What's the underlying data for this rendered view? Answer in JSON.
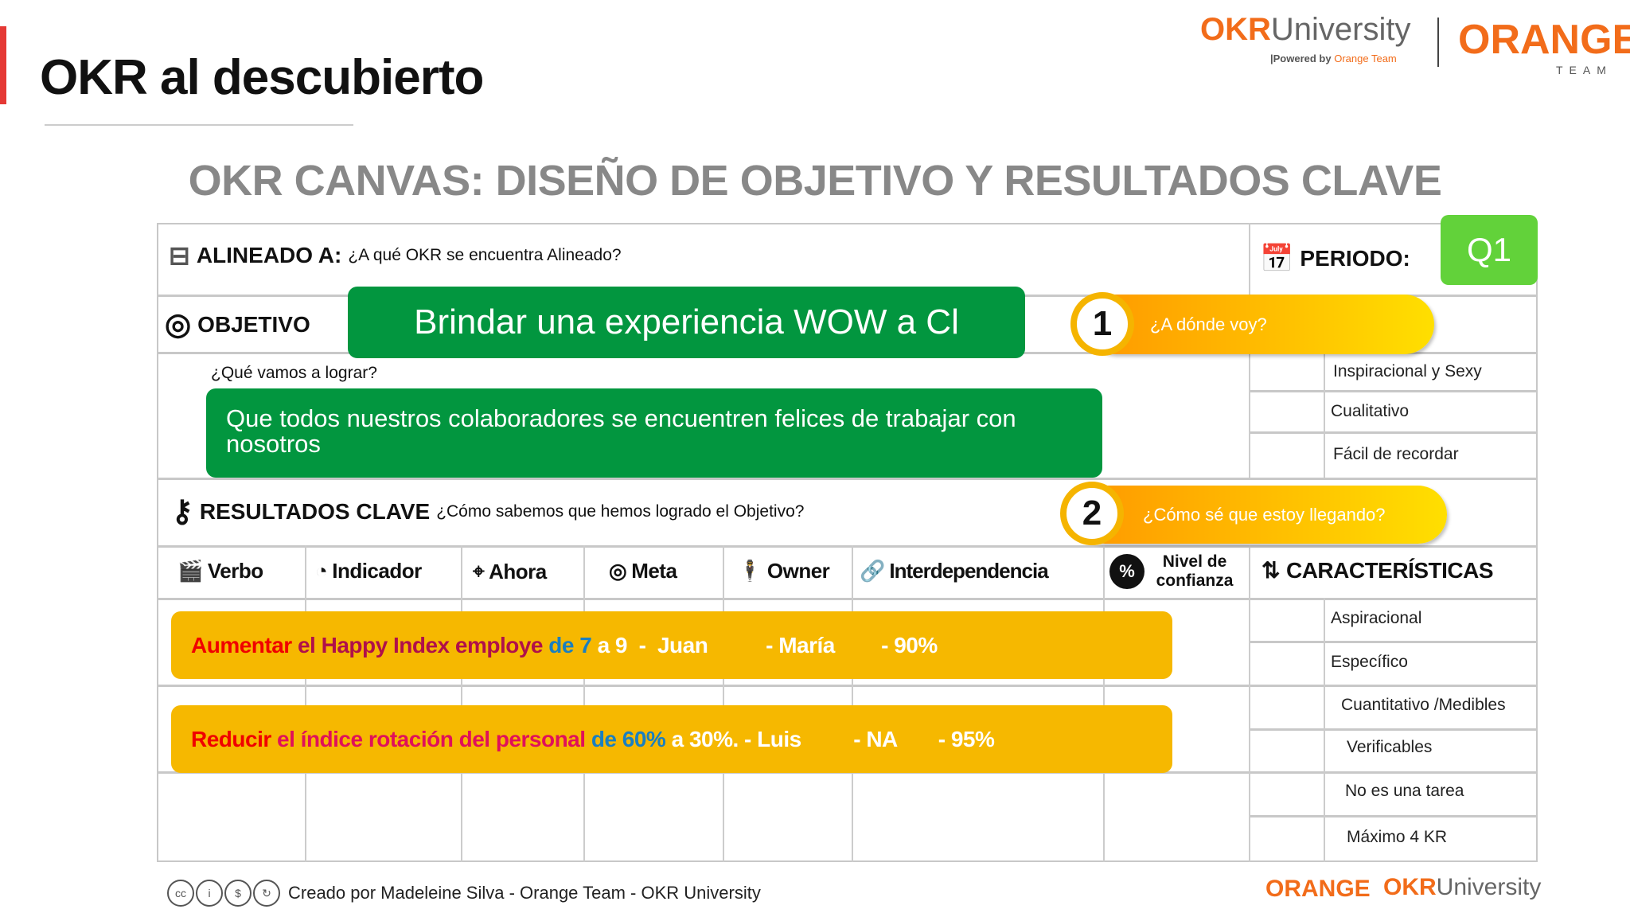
{
  "header": {
    "title": "OKR al descubierto",
    "logo_okr": "OKR",
    "logo_university": "University",
    "logo_powered": "|Powered by",
    "logo_powered_brand": "Orange Team",
    "logo_orange": "ORANGE",
    "logo_team": "TEAM"
  },
  "canvas": {
    "title": "OKR CANVAS: DISEÑO DE OBJETIVO Y RESULTADOS CLAVE",
    "aligned_label": "ALINEADO A:",
    "aligned_question": "¿A qué OKR se encuentra Alineado?",
    "period_label": "PERIODO:",
    "period_value": "Q1",
    "objective_label": "OBJETIVO",
    "objective_value": "Brindar una experiencia WOW a Cl",
    "objective_question": "¿Qué vamos a lograr?",
    "objective_description": "Que todos nuestros colaboradores se encuentren felices de trabajar con nosotros",
    "step1_number": "1",
    "step1_text": "¿A dónde voy?",
    "step2_number": "2",
    "step2_text": "¿Cómo sé que estoy llegando?",
    "kr_label": "RESULTADOS CLAVE",
    "kr_question": "¿Cómo sabemos que hemos logrado el Objetivo?",
    "columns": [
      "Verbo",
      "Indicador",
      "Ahora",
      "Meta",
      "Owner",
      "Interdependencia",
      "Nivel de confianza",
      "CARACTERÍSTICAS"
    ],
    "objective_traits": [
      "Inspiracional y Sexy",
      "Cualitativo",
      "Fácil de recordar"
    ],
    "kr_traits": [
      "Aspiracional",
      "Específico",
      "Cuantitativo /Medibles",
      "Verificables",
      "No es una tarea",
      "Máximo 4 KR"
    ],
    "key_results": [
      {
        "verb": "Aumentar",
        "indicator": "el Happy Index employe",
        "now": "de 7",
        "goal": "a 9",
        "owner": "  -  Juan",
        "interdependency": "          - María",
        "confidence": "        - 90%"
      },
      {
        "verb": "Reducir",
        "indicator": "el índice rotación del personal",
        "now": "de 60%",
        "goal": "a 30%.",
        "owner": " - Luis",
        "interdependency": "         - NA",
        "confidence": "       - 95%"
      }
    ]
  },
  "footer": {
    "license": "CC BY NC SA",
    "credit": "Creado por Madeleine Silva  -  Orange Team - OKR University",
    "logo_orange": "ORANGE",
    "logo_okr": "OKR",
    "logo_university": "University"
  },
  "colors": {
    "green": "#02963f",
    "q1": "#62d23a",
    "kr_bar": "#f6b800",
    "verb": "#f00000",
    "indicator": "#b0104a",
    "now": "#1a7fc0",
    "orange": "#f26c1a"
  }
}
